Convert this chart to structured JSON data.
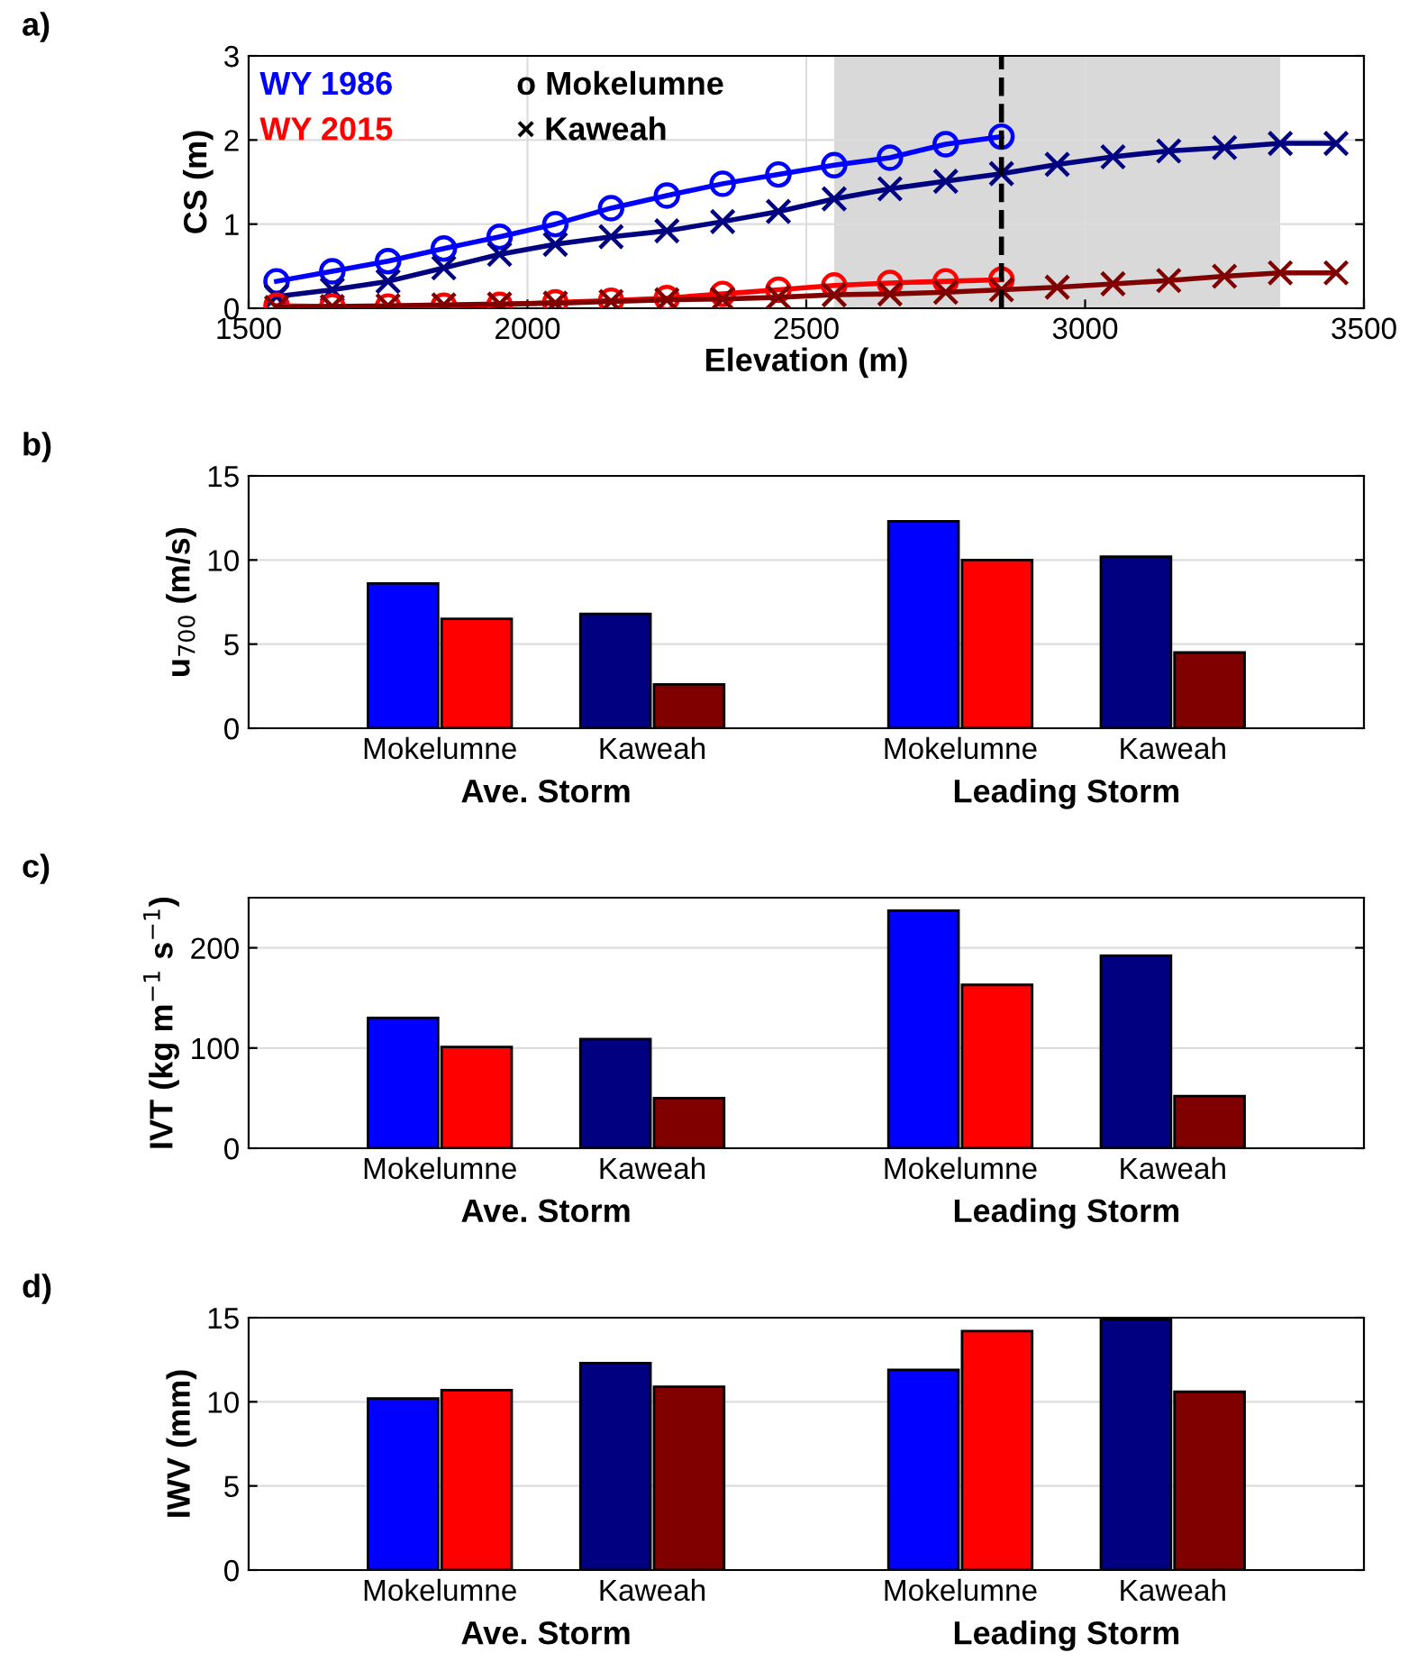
{
  "chart_data": [
    {
      "type": "line",
      "title": "a)",
      "xlabel": "Elevation (m)",
      "ylabel": "CS (m)",
      "xlim": [
        1500,
        3500
      ],
      "xticks": [
        1500,
        2000,
        2500,
        3000,
        3500
      ],
      "ylim": [
        0,
        3
      ],
      "yticks": [
        0,
        1,
        2,
        3
      ],
      "grid": true,
      "legend": false,
      "annotations": [
        "WY 1986",
        "WY 2015",
        "o Mokelumne",
        "× Kaweah"
      ],
      "bands": [
        {
          "axis": "x",
          "from": 2550,
          "to": 3350,
          "color": "#d9d9d9"
        }
      ],
      "ref_lines": [
        {
          "axis": "x",
          "value": 2850,
          "color": "#000000",
          "line_style": "dashed"
        }
      ],
      "series": [
        {
          "color": "#0000ff",
          "marker": "circle",
          "x": [
            1550,
            1650,
            1750,
            1850,
            1950,
            2050,
            2150,
            2250,
            2350,
            2450,
            2550,
            2650,
            2750,
            2850
          ],
          "values": [
            0.32,
            0.44,
            0.56,
            0.71,
            0.85,
            1.0,
            1.19,
            1.34,
            1.48,
            1.59,
            1.7,
            1.79,
            1.95,
            2.04
          ]
        },
        {
          "color": "#000080",
          "marker": "cross",
          "x": [
            1550,
            1650,
            1750,
            1850,
            1950,
            2050,
            2150,
            2250,
            2350,
            2450,
            2550,
            2650,
            2750,
            2850,
            2950,
            3050,
            3150,
            3250,
            3350,
            3450
          ],
          "values": [
            0.14,
            0.22,
            0.32,
            0.48,
            0.64,
            0.76,
            0.85,
            0.92,
            1.03,
            1.15,
            1.3,
            1.42,
            1.51,
            1.6,
            1.71,
            1.8,
            1.87,
            1.91,
            1.96,
            1.96
          ]
        },
        {
          "color": "#ff0000",
          "marker": "circle",
          "x": [
            1550,
            1650,
            1750,
            1850,
            1950,
            2050,
            2150,
            2250,
            2350,
            2450,
            2550,
            2650,
            2750,
            2850
          ],
          "values": [
            0.03,
            0.02,
            0.02,
            0.03,
            0.04,
            0.07,
            0.09,
            0.12,
            0.17,
            0.22,
            0.27,
            0.3,
            0.32,
            0.34
          ]
        },
        {
          "color": "#800000",
          "marker": "cross",
          "x": [
            1550,
            1650,
            1750,
            1850,
            1950,
            2050,
            2150,
            2250,
            2350,
            2450,
            2550,
            2650,
            2750,
            2850,
            2950,
            3050,
            3150,
            3250,
            3350,
            3450
          ],
          "values": [
            0.01,
            0.02,
            0.03,
            0.04,
            0.05,
            0.06,
            0.08,
            0.1,
            0.11,
            0.13,
            0.16,
            0.17,
            0.19,
            0.22,
            0.25,
            0.29,
            0.33,
            0.38,
            0.42,
            0.42
          ]
        }
      ]
    },
    {
      "type": "bar",
      "title": "b)",
      "ylabel": "u$_{700}$ (m/s)",
      "categories": [
        "Mokelumne",
        "Kaweah",
        "Mokelumne",
        "Kaweah"
      ],
      "annotations": [
        "Ave. Storm",
        "Leading Storm"
      ],
      "ylim": [
        0,
        15
      ],
      "yticks": [
        0,
        5,
        10,
        15
      ],
      "grid": "y",
      "series": [
        {
          "colors": [
            "#0000ff",
            "#000080",
            "#0000ff",
            "#000080"
          ],
          "values": [
            8.6,
            6.8,
            12.3,
            10.2
          ]
        },
        {
          "colors": [
            "#ff0000",
            "#800000",
            "#ff0000",
            "#800000"
          ],
          "values": [
            6.5,
            2.6,
            10.0,
            4.5
          ]
        }
      ]
    },
    {
      "type": "bar",
      "title": "c)",
      "ylabel": "IVT (kg m$^{−1}$ s$^{−1}$)",
      "categories": [
        "Mokelumne",
        "Kaweah",
        "Mokelumne",
        "Kaweah"
      ],
      "annotations": [
        "Ave. Storm",
        "Leading Storm"
      ],
      "ylim": [
        0,
        250
      ],
      "yticks": [
        0,
        100,
        200
      ],
      "grid": "y",
      "series": [
        {
          "colors": [
            "#0000ff",
            "#000080",
            "#0000ff",
            "#000080"
          ],
          "values": [
            130,
            109,
            237,
            192
          ]
        },
        {
          "colors": [
            "#ff0000",
            "#800000",
            "#ff0000",
            "#800000"
          ],
          "values": [
            101,
            50,
            163,
            52
          ]
        }
      ]
    },
    {
      "type": "bar",
      "title": "d)",
      "ylabel": "IWV (mm)",
      "categories": [
        "Mokelumne",
        "Kaweah",
        "Mokelumne",
        "Kaweah"
      ],
      "annotations": [
        "Ave. Storm",
        "Leading Storm"
      ],
      "ylim": [
        0,
        15
      ],
      "yticks": [
        0,
        5,
        10,
        15
      ],
      "grid": "y",
      "series": [
        {
          "colors": [
            "#0000ff",
            "#000080",
            "#0000ff",
            "#000080"
          ],
          "values": [
            10.2,
            12.3,
            11.9,
            14.9
          ]
        },
        {
          "colors": [
            "#ff0000",
            "#800000",
            "#ff0000",
            "#800000"
          ],
          "values": [
            10.7,
            10.9,
            14.2,
            10.6
          ]
        }
      ]
    }
  ]
}
